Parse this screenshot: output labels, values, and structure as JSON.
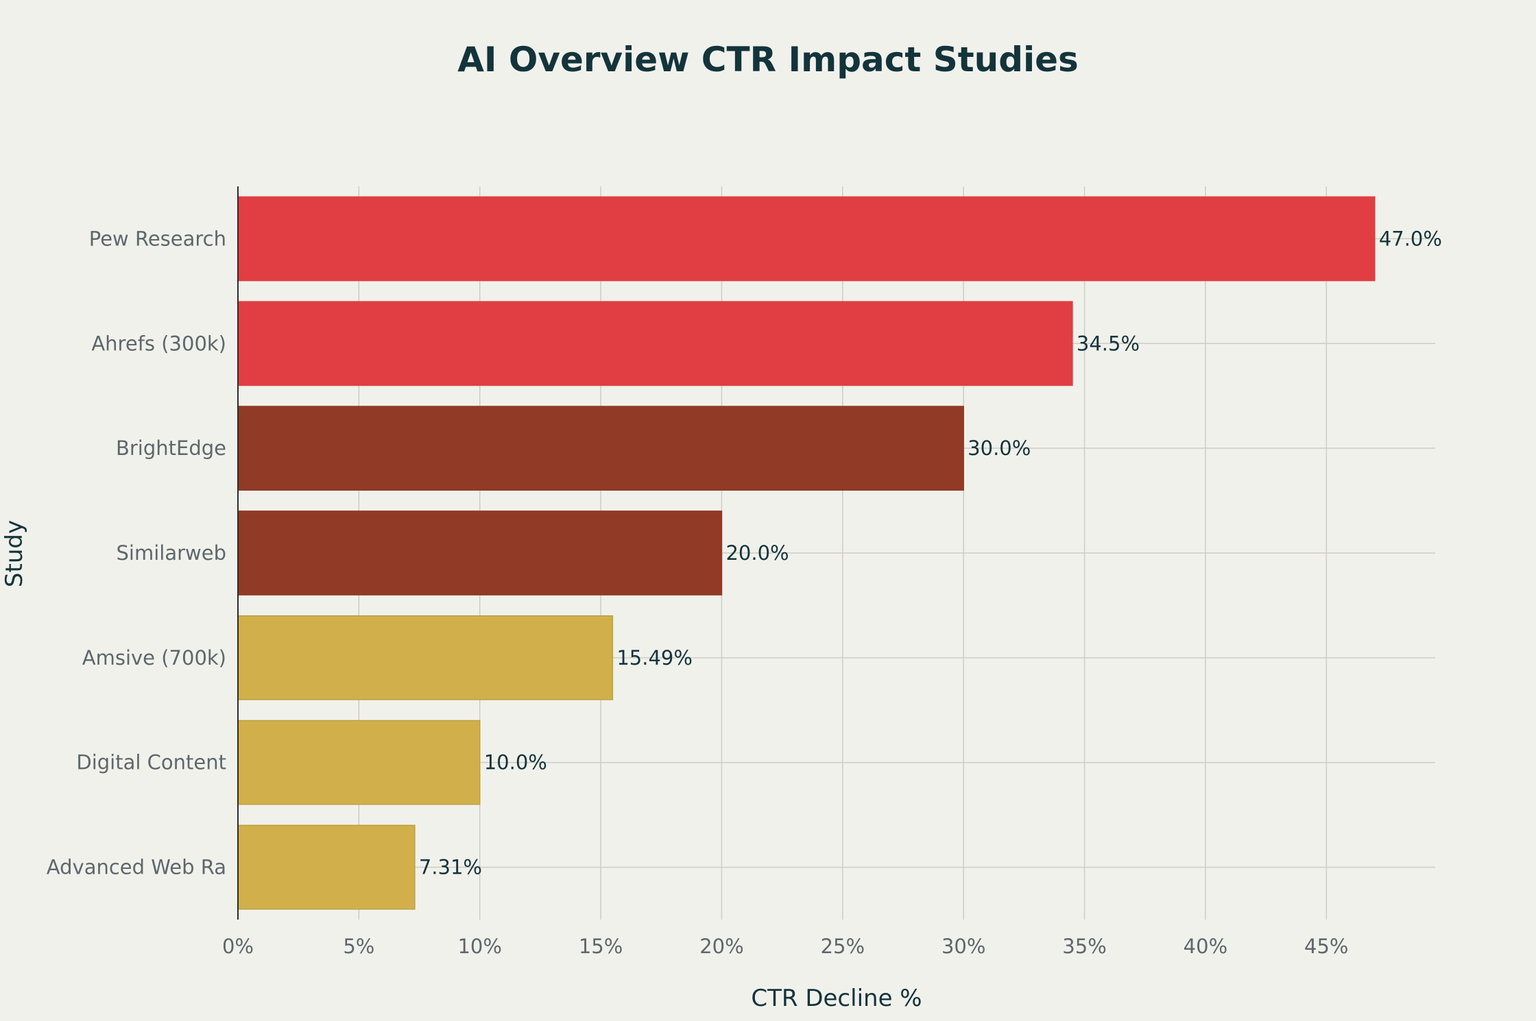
{
  "chart_data": {
    "type": "bar",
    "orientation": "horizontal",
    "title": "AI Overview CTR Impact Studies",
    "xlabel": "CTR Decline %",
    "ylabel": "Study",
    "xlim": [
      0,
      49.5
    ],
    "x_ticks": [
      0,
      5,
      10,
      15,
      20,
      25,
      30,
      35,
      40,
      45
    ],
    "x_tick_labels": [
      "0%",
      "5%",
      "10%",
      "15%",
      "20%",
      "25%",
      "30%",
      "35%",
      "40%",
      "45%"
    ],
    "grid": true,
    "legend": "none",
    "categories": [
      "Pew Research",
      "Ahrefs (300k)",
      "BrightEdge",
      "Similarweb",
      "Amsive (700k)",
      "Digital Content",
      "Advanced Web Ra"
    ],
    "values": [
      47.0,
      34.5,
      30.0,
      20.0,
      15.49,
      10.0,
      7.31
    ],
    "data_labels": [
      "47.0%",
      "34.5%",
      "30.0%",
      "20.0%",
      "15.49%",
      "10.0%",
      "7.31%"
    ],
    "colors": [
      "#e03e42",
      "#e03e42",
      "#913a26",
      "#913a26",
      "#d1b04c",
      "#d1b04c",
      "#d1b04c"
    ],
    "edge_colors": [
      "#e03e42",
      "#e03e42",
      "#913a26",
      "#913a26",
      "#bca03f",
      "#bca03f",
      "#bca03f"
    ]
  }
}
